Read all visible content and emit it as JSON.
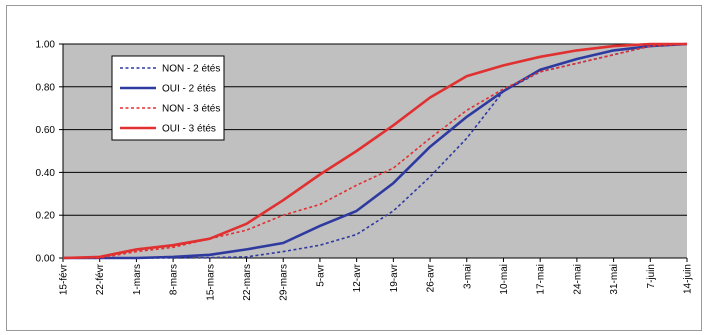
{
  "chart_data": {
    "type": "line",
    "title": "",
    "xlabel": "",
    "ylabel": "",
    "ylim": [
      0,
      1
    ],
    "yticks": [
      "0.00",
      "0.20",
      "0.40",
      "0.60",
      "0.80",
      "1.00"
    ],
    "x_ticks": [
      "15-févr",
      "22-févr",
      "1-mars",
      "8-mars",
      "15-mars",
      "22-mars",
      "29-mars",
      "5-avr",
      "12-avr",
      "19-avr",
      "26-avr",
      "3-mai",
      "10-mai",
      "17-mai",
      "24-mai",
      "31-mai",
      "7-juin",
      "14-juin"
    ],
    "grid": true,
    "legend_position": "top-left",
    "plot_background": "#c0c0c0",
    "series": [
      {
        "name": "NON - 2 étés",
        "color": "#2e3aa0",
        "style": "dashed",
        "values": [
          0,
          0,
          0,
          0,
          0.002,
          0.005,
          0.03,
          0.06,
          0.11,
          0.22,
          0.38,
          0.56,
          0.78,
          0.87,
          0.91,
          0.95,
          0.99,
          1.0
        ]
      },
      {
        "name": "OUI - 2 étés",
        "color": "#2e3aa0",
        "style": "solid",
        "values": [
          0,
          0,
          0,
          0.005,
          0.015,
          0.04,
          0.07,
          0.15,
          0.22,
          0.35,
          0.52,
          0.66,
          0.78,
          0.88,
          0.93,
          0.97,
          0.99,
          1.0
        ]
      },
      {
        "name": "NON - 3 étés",
        "color": "#e03030",
        "style": "dashed",
        "values": [
          0,
          0,
          0.03,
          0.05,
          0.09,
          0.13,
          0.2,
          0.25,
          0.34,
          0.42,
          0.56,
          0.69,
          0.79,
          0.87,
          0.91,
          0.95,
          0.99,
          1.0
        ]
      },
      {
        "name": "OUI - 3 étés",
        "color": "#e03030",
        "style": "solid",
        "values": [
          0,
          0.005,
          0.04,
          0.06,
          0.09,
          0.16,
          0.27,
          0.39,
          0.5,
          0.62,
          0.75,
          0.85,
          0.9,
          0.94,
          0.97,
          0.99,
          1.0,
          1.0
        ]
      }
    ]
  }
}
